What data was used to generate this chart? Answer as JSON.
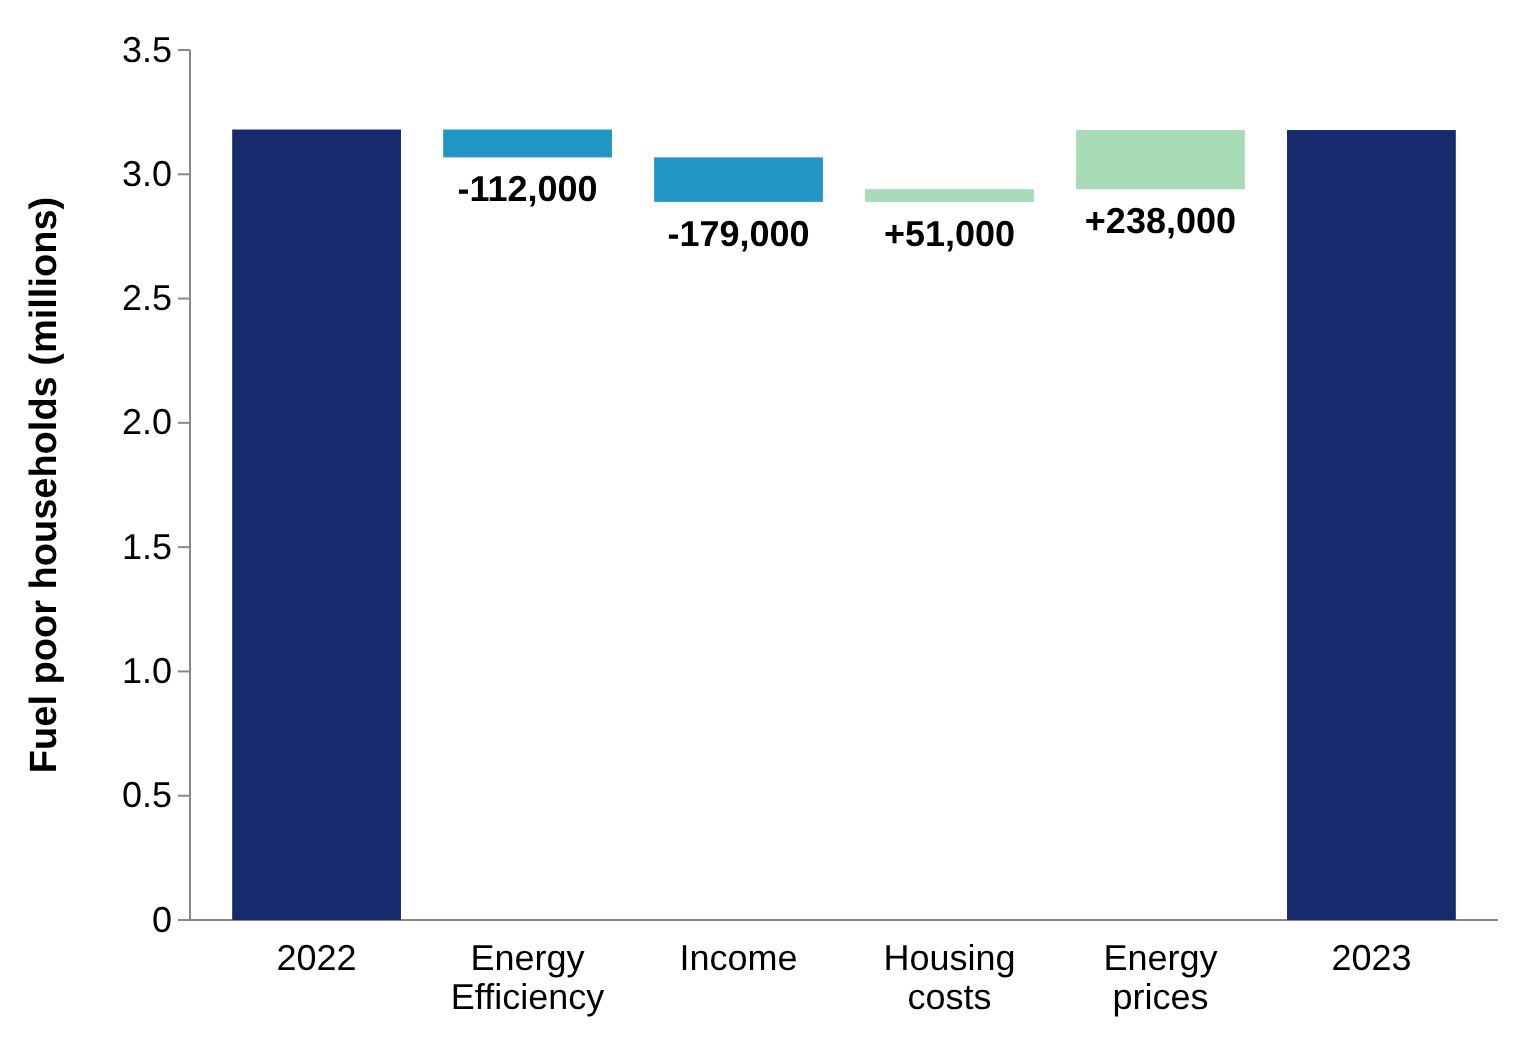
{
  "chart_data": {
    "type": "bar",
    "ylabel": "Fuel poor households (millions)",
    "categories": [
      "2022",
      "Energy Efficiency",
      "Income",
      "Housing costs",
      "Energy prices",
      "2023"
    ],
    "values": [
      3.18,
      -0.112,
      -0.179,
      0.051,
      0.238,
      3.178
    ],
    "base": [
      0,
      3.18,
      3.068,
      2.889,
      2.94,
      0
    ],
    "colors": [
      "#172a6e",
      "#2196c4",
      "#2196c4",
      "#a8dcb7",
      "#a8dcb7",
      "#172a6e"
    ],
    "annotations": [
      {
        "text": "-112,000",
        "x": "Energy Efficiency",
        "y": 3.068
      },
      {
        "text": "-179,000",
        "x": "Income",
        "y": 2.889
      },
      {
        "text": "+51,000",
        "x": "Housing costs",
        "y": 2.889
      },
      {
        "text": "+238,000",
        "x": "Energy prices",
        "y": 2.94
      }
    ],
    "ylim": [
      0,
      3.5
    ],
    "yticks": [
      {
        "value": 0,
        "label": "0"
      },
      {
        "value": 0.5,
        "label": "0.5"
      },
      {
        "value": 1,
        "label": "1.0"
      },
      {
        "value": 1.5,
        "label": "1.5"
      },
      {
        "value": 2,
        "label": "2.0"
      },
      {
        "value": 2.5,
        "label": "2.5"
      },
      {
        "value": 3,
        "label": "3.0"
      },
      {
        "value": 3.5,
        "label": "3.5"
      }
    ],
    "grid": false
  }
}
